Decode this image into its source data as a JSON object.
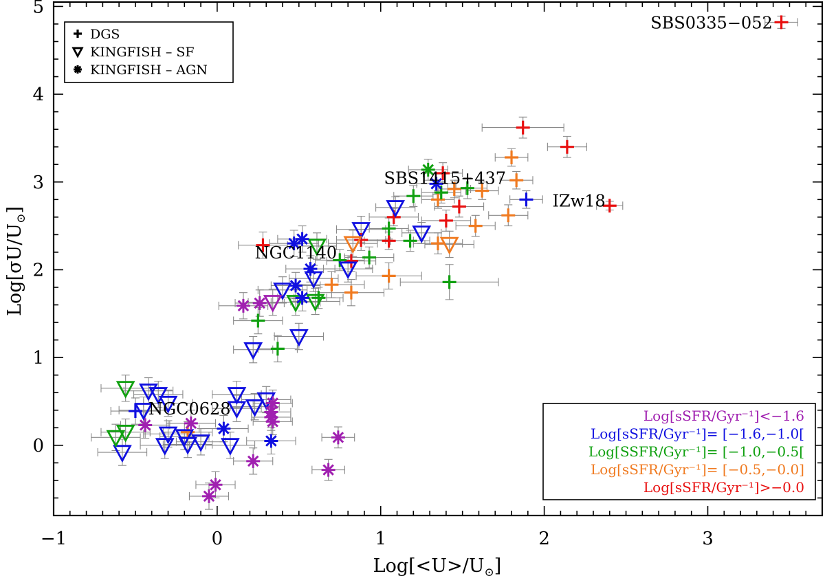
{
  "chart_data": {
    "type": "scatter",
    "xlabel_main": "Log[<U>/U",
    "xlabel_sub": "⊙",
    "xlabel_end": "]",
    "ylabel_main": "Log[σU/U",
    "ylabel_sub": "⊙",
    "ylabel_end": "]",
    "xlim": [
      -1.0,
      3.7
    ],
    "ylim": [
      -0.8,
      5.05
    ],
    "xticks": [
      -1,
      0,
      1,
      2,
      3
    ],
    "xtick_labels": [
      "−1",
      "0",
      "1",
      "2",
      "3"
    ],
    "yticks": [
      0,
      1,
      2,
      3,
      4,
      5
    ],
    "ytick_labels": [
      "0",
      "1",
      "2",
      "3",
      "4",
      "5"
    ],
    "colors": {
      "lt_m1_6": "#a020b0",
      "m1_6_m1_0": "#1010e0",
      "m1_0_m0_5": "#10a010",
      "m0_5_0_0": "#f07a20",
      "gt_0_0": "#e81010",
      "errorbar": "#8a8a8a",
      "axis": "#000000"
    },
    "marker_legend": [
      {
        "symbol": "plus",
        "label": "DGS"
      },
      {
        "symbol": "triangle",
        "label": "KINGFISH  –  SF"
      },
      {
        "symbol": "asterisk",
        "label": "KINGFISH  –  AGN"
      }
    ],
    "color_legend": [
      {
        "key": "lt_m1_6",
        "label": "Log[sSFR/Gyr⁻¹]<−1.6"
      },
      {
        "key": "m1_6_m1_0",
        "label": "Log[sSFR/Gyr⁻¹]=  [−1.6,−1.0["
      },
      {
        "key": "m1_0_m0_5",
        "label": "Log[SSFR/Gyr⁻¹]=  [−1.0,−0.5["
      },
      {
        "key": "m0_5_0_0",
        "label": "Log[sSFR/Gyr⁻¹]=  [−0.5,−0.0]"
      },
      {
        "key": "gt_0_0",
        "label": "Log[sSFR/Gyr⁻¹]>−0.0"
      }
    ],
    "annotations": [
      {
        "text": "SBS0335−052",
        "x": 2.65,
        "y": 4.82
      },
      {
        "text": "SBS1415+437",
        "x": 1.02,
        "y": 3.05
      },
      {
        "text": "IZw18",
        "x": 2.05,
        "y": 2.79
      },
      {
        "text": "NGC1140",
        "x": 0.23,
        "y": 2.2
      },
      {
        "text": "NGC0628",
        "x": -0.42,
        "y": 0.42
      }
    ],
    "series": [
      {
        "name": "DGS",
        "marker": "plus",
        "points": [
          {
            "x": 3.45,
            "y": 4.82,
            "dx": 0.1,
            "dy": 0.07,
            "c": "gt_0_0"
          },
          {
            "x": 1.87,
            "y": 3.62,
            "dx": 0.25,
            "dy": 0.12,
            "c": "gt_0_0"
          },
          {
            "x": 2.14,
            "y": 3.4,
            "dx": 0.12,
            "dy": 0.12,
            "c": "gt_0_0"
          },
          {
            "x": 2.4,
            "y": 2.73,
            "dx": 0.08,
            "dy": 0.05,
            "c": "gt_0_0"
          },
          {
            "x": 1.48,
            "y": 2.72,
            "dx": 0.15,
            "dy": 0.12,
            "c": "gt_0_0"
          },
          {
            "x": 1.4,
            "y": 2.56,
            "dx": 0.15,
            "dy": 0.12,
            "c": "gt_0_0"
          },
          {
            "x": 1.05,
            "y": 2.33,
            "dx": 0.15,
            "dy": 0.1,
            "c": "gt_0_0"
          },
          {
            "x": 1.08,
            "y": 2.6,
            "dx": 0.15,
            "dy": 0.1,
            "c": "gt_0_0"
          },
          {
            "x": 0.88,
            "y": 2.34,
            "dx": 0.15,
            "dy": 0.12,
            "c": "gt_0_0"
          },
          {
            "x": 0.82,
            "y": 2.1,
            "dx": 0.15,
            "dy": 0.12,
            "c": "gt_0_0"
          },
          {
            "x": 0.28,
            "y": 2.28,
            "dx": 0.15,
            "dy": 0.15,
            "c": "gt_0_0"
          },
          {
            "x": 1.38,
            "y": 3.1,
            "dx": 0.12,
            "dy": 0.12,
            "c": "gt_0_0"
          },
          {
            "x": 1.8,
            "y": 3.28,
            "dx": 0.1,
            "dy": 0.1,
            "c": "m0_5_0_0"
          },
          {
            "x": 1.83,
            "y": 3.02,
            "dx": 0.1,
            "dy": 0.1,
            "c": "m0_5_0_0"
          },
          {
            "x": 1.62,
            "y": 2.9,
            "dx": 0.1,
            "dy": 0.1,
            "c": "m0_5_0_0"
          },
          {
            "x": 1.78,
            "y": 2.62,
            "dx": 0.12,
            "dy": 0.12,
            "c": "m0_5_0_0"
          },
          {
            "x": 1.58,
            "y": 2.5,
            "dx": 0.12,
            "dy": 0.12,
            "c": "m0_5_0_0"
          },
          {
            "x": 1.45,
            "y": 2.92,
            "dx": 0.1,
            "dy": 0.1,
            "c": "m0_5_0_0"
          },
          {
            "x": 1.35,
            "y": 2.8,
            "dx": 0.1,
            "dy": 0.1,
            "c": "m0_5_0_0"
          },
          {
            "x": 1.35,
            "y": 2.3,
            "dx": 0.15,
            "dy": 0.12,
            "c": "m0_5_0_0"
          },
          {
            "x": 1.05,
            "y": 1.93,
            "dx": 0.2,
            "dy": 0.15,
            "c": "m0_5_0_0"
          },
          {
            "x": 0.82,
            "y": 1.74,
            "dx": 0.2,
            "dy": 0.15,
            "c": "m0_5_0_0"
          },
          {
            "x": 0.7,
            "y": 1.83,
            "dx": 0.2,
            "dy": 0.15,
            "c": "m0_5_0_0"
          },
          {
            "x": -0.18,
            "y": 0.15,
            "dx": 0.15,
            "dy": 0.12,
            "c": "m0_5_0_0"
          },
          {
            "x": 1.42,
            "y": 1.86,
            "dx": 0.3,
            "dy": 0.2,
            "c": "m1_0_m0_5"
          },
          {
            "x": 1.53,
            "y": 2.93,
            "dx": 0.12,
            "dy": 0.12,
            "c": "m1_0_m0_5"
          },
          {
            "x": 1.37,
            "y": 2.88,
            "dx": 0.12,
            "dy": 0.12,
            "c": "m1_0_m0_5"
          },
          {
            "x": 1.2,
            "y": 2.84,
            "dx": 0.12,
            "dy": 0.12,
            "c": "m1_0_m0_5"
          },
          {
            "x": 1.05,
            "y": 2.47,
            "dx": 0.12,
            "dy": 0.12,
            "c": "m1_0_m0_5"
          },
          {
            "x": 1.18,
            "y": 2.33,
            "dx": 0.12,
            "dy": 0.12,
            "c": "m1_0_m0_5"
          },
          {
            "x": 0.93,
            "y": 2.14,
            "dx": 0.15,
            "dy": 0.12,
            "c": "m1_0_m0_5"
          },
          {
            "x": 0.75,
            "y": 2.11,
            "dx": 0.15,
            "dy": 0.12,
            "c": "m1_0_m0_5"
          },
          {
            "x": 0.62,
            "y": 1.68,
            "dx": 0.15,
            "dy": 0.12,
            "c": "m1_0_m0_5"
          },
          {
            "x": 0.25,
            "y": 1.42,
            "dx": 0.15,
            "dy": 0.15,
            "c": "m1_0_m0_5"
          },
          {
            "x": 0.37,
            "y": 1.1,
            "dx": 0.12,
            "dy": 0.15,
            "c": "m1_0_m0_5"
          },
          {
            "x": 1.89,
            "y": 2.8,
            "dx": 0.1,
            "dy": 0.1,
            "c": "m1_6_m1_0"
          },
          {
            "x": -0.5,
            "y": 0.39,
            "dx": 0.15,
            "dy": 0.15,
            "c": "m1_6_m1_0"
          }
        ]
      },
      {
        "name": "KINGFISH - SF",
        "marker": "triangle",
        "points": [
          {
            "x": 1.09,
            "y": 2.71,
            "dx": 0.12,
            "dy": 0.12,
            "c": "m1_6_m1_0"
          },
          {
            "x": 1.25,
            "y": 2.42,
            "dx": 0.12,
            "dy": 0.12,
            "c": "m1_6_m1_0"
          },
          {
            "x": 0.88,
            "y": 2.46,
            "dx": 0.15,
            "dy": 0.15,
            "c": "m1_6_m1_0"
          },
          {
            "x": 0.8,
            "y": 2.01,
            "dx": 0.15,
            "dy": 0.15,
            "c": "m1_6_m1_0"
          },
          {
            "x": 0.59,
            "y": 1.9,
            "dx": 0.15,
            "dy": 0.15,
            "c": "m1_6_m1_0"
          },
          {
            "x": 0.4,
            "y": 1.77,
            "dx": 0.15,
            "dy": 0.15,
            "c": "m1_6_m1_0"
          },
          {
            "x": 0.5,
            "y": 1.24,
            "dx": 0.15,
            "dy": 0.15,
            "c": "m1_6_m1_0"
          },
          {
            "x": 0.22,
            "y": 1.09,
            "dx": 0.12,
            "dy": 0.15,
            "c": "m1_6_m1_0"
          },
          {
            "x": -0.42,
            "y": 0.62,
            "dx": 0.15,
            "dy": 0.15,
            "c": "m1_6_m1_0"
          },
          {
            "x": -0.36,
            "y": 0.58,
            "dx": 0.15,
            "dy": 0.15,
            "c": "m1_6_m1_0"
          },
          {
            "x": -0.3,
            "y": 0.48,
            "dx": 0.15,
            "dy": 0.15,
            "c": "m1_6_m1_0"
          },
          {
            "x": -0.45,
            "y": 0.4,
            "dx": 0.15,
            "dy": 0.15,
            "c": "m1_6_m1_0"
          },
          {
            "x": -0.3,
            "y": 0.13,
            "dx": 0.15,
            "dy": 0.15,
            "c": "m1_6_m1_0"
          },
          {
            "x": -0.2,
            "y": 0.1,
            "dx": 0.15,
            "dy": 0.15,
            "c": "m1_6_m1_0"
          },
          {
            "x": -0.1,
            "y": 0.04,
            "dx": 0.15,
            "dy": 0.15,
            "c": "m1_6_m1_0"
          },
          {
            "x": -0.32,
            "y": 0.0,
            "dx": 0.15,
            "dy": 0.15,
            "c": "m1_6_m1_0"
          },
          {
            "x": -0.18,
            "y": 0.01,
            "dx": 0.15,
            "dy": 0.15,
            "c": "m1_6_m1_0"
          },
          {
            "x": -0.58,
            "y": -0.08,
            "dx": 0.15,
            "dy": 0.15,
            "c": "m1_6_m1_0"
          },
          {
            "x": 0.12,
            "y": 0.58,
            "dx": 0.15,
            "dy": 0.15,
            "c": "m1_6_m1_0"
          },
          {
            "x": 0.12,
            "y": 0.42,
            "dx": 0.15,
            "dy": 0.15,
            "c": "m1_6_m1_0"
          },
          {
            "x": 0.3,
            "y": 0.52,
            "dx": 0.15,
            "dy": 0.15,
            "c": "m1_6_m1_0"
          },
          {
            "x": 0.23,
            "y": 0.44,
            "dx": 0.15,
            "dy": 0.15,
            "c": "m1_6_m1_0"
          },
          {
            "x": 0.08,
            "y": 0.0,
            "dx": 0.15,
            "dy": 0.15,
            "c": "m1_6_m1_0"
          },
          {
            "x": 0.61,
            "y": 2.27,
            "dx": 0.12,
            "dy": 0.15,
            "c": "m1_0_m0_5"
          },
          {
            "x": 0.48,
            "y": 1.63,
            "dx": 0.15,
            "dy": 0.15,
            "c": "m1_0_m0_5"
          },
          {
            "x": 0.6,
            "y": 1.64,
            "dx": 0.15,
            "dy": 0.15,
            "c": "m1_0_m0_5"
          },
          {
            "x": -0.56,
            "y": 0.65,
            "dx": 0.15,
            "dy": 0.15,
            "c": "m1_0_m0_5"
          },
          {
            "x": -0.62,
            "y": 0.09,
            "dx": 0.15,
            "dy": 0.15,
            "c": "m1_0_m0_5"
          },
          {
            "x": -0.56,
            "y": 0.15,
            "dx": 0.15,
            "dy": 0.15,
            "c": "m1_0_m0_5"
          },
          {
            "x": 1.42,
            "y": 2.29,
            "dx": 0.15,
            "dy": 0.15,
            "c": "m0_5_0_0"
          },
          {
            "x": 0.83,
            "y": 2.3,
            "dx": 0.15,
            "dy": 0.15,
            "c": "m0_5_0_0"
          },
          {
            "x": 0.34,
            "y": 1.63,
            "dx": 0.15,
            "dy": 0.15,
            "c": "lt_m1_6"
          }
        ]
      },
      {
        "name": "KINGFISH - AGN",
        "marker": "asterisk",
        "points": [
          {
            "x": 1.29,
            "y": 3.14,
            "dx": 0.12,
            "dy": 0.12,
            "c": "m1_0_m0_5"
          },
          {
            "x": 1.34,
            "y": 2.98,
            "dx": 0.12,
            "dy": 0.12,
            "c": "m1_6_m1_0"
          },
          {
            "x": 0.52,
            "y": 2.35,
            "dx": 0.15,
            "dy": 0.15,
            "c": "m1_6_m1_0"
          },
          {
            "x": 0.47,
            "y": 2.3,
            "dx": 0.15,
            "dy": 0.15,
            "c": "m1_6_m1_0"
          },
          {
            "x": 0.57,
            "y": 2.01,
            "dx": 0.15,
            "dy": 0.15,
            "c": "m1_6_m1_0"
          },
          {
            "x": 0.48,
            "y": 1.82,
            "dx": 0.15,
            "dy": 0.15,
            "c": "m1_6_m1_0"
          },
          {
            "x": 0.52,
            "y": 1.68,
            "dx": 0.15,
            "dy": 0.15,
            "c": "m1_6_m1_0"
          },
          {
            "x": 0.04,
            "y": 0.19,
            "dx": 0.15,
            "dy": 0.15,
            "c": "m1_6_m1_0"
          },
          {
            "x": 0.33,
            "y": 0.05,
            "dx": 0.15,
            "dy": 0.15,
            "c": "m1_6_m1_0"
          },
          {
            "x": 0.16,
            "y": 1.59,
            "dx": 0.15,
            "dy": 0.15,
            "c": "lt_m1_6"
          },
          {
            "x": 0.26,
            "y": 1.62,
            "dx": 0.15,
            "dy": 0.15,
            "c": "lt_m1_6"
          },
          {
            "x": 0.34,
            "y": 0.48,
            "dx": 0.12,
            "dy": 0.15,
            "c": "lt_m1_6"
          },
          {
            "x": 0.33,
            "y": 0.38,
            "dx": 0.12,
            "dy": 0.15,
            "c": "lt_m1_6"
          },
          {
            "x": 0.34,
            "y": 0.27,
            "dx": 0.12,
            "dy": 0.15,
            "c": "lt_m1_6"
          },
          {
            "x": 0.33,
            "y": 0.32,
            "dx": 0.12,
            "dy": 0.15,
            "c": "lt_m1_6"
          },
          {
            "x": -0.44,
            "y": 0.23,
            "dx": 0.15,
            "dy": 0.15,
            "c": "lt_m1_6"
          },
          {
            "x": -0.16,
            "y": 0.25,
            "dx": 0.15,
            "dy": 0.15,
            "c": "lt_m1_6"
          },
          {
            "x": 0.22,
            "y": -0.18,
            "dx": 0.12,
            "dy": 0.15,
            "c": "lt_m1_6"
          },
          {
            "x": 0.74,
            "y": 0.09,
            "dx": 0.1,
            "dy": 0.12,
            "c": "lt_m1_6"
          },
          {
            "x": 0.68,
            "y": -0.28,
            "dx": 0.1,
            "dy": 0.12,
            "c": "lt_m1_6"
          },
          {
            "x": -0.01,
            "y": -0.45,
            "dx": 0.12,
            "dy": 0.15,
            "c": "lt_m1_6"
          },
          {
            "x": -0.05,
            "y": -0.58,
            "dx": 0.12,
            "dy": 0.15,
            "c": "lt_m1_6"
          }
        ]
      }
    ]
  }
}
